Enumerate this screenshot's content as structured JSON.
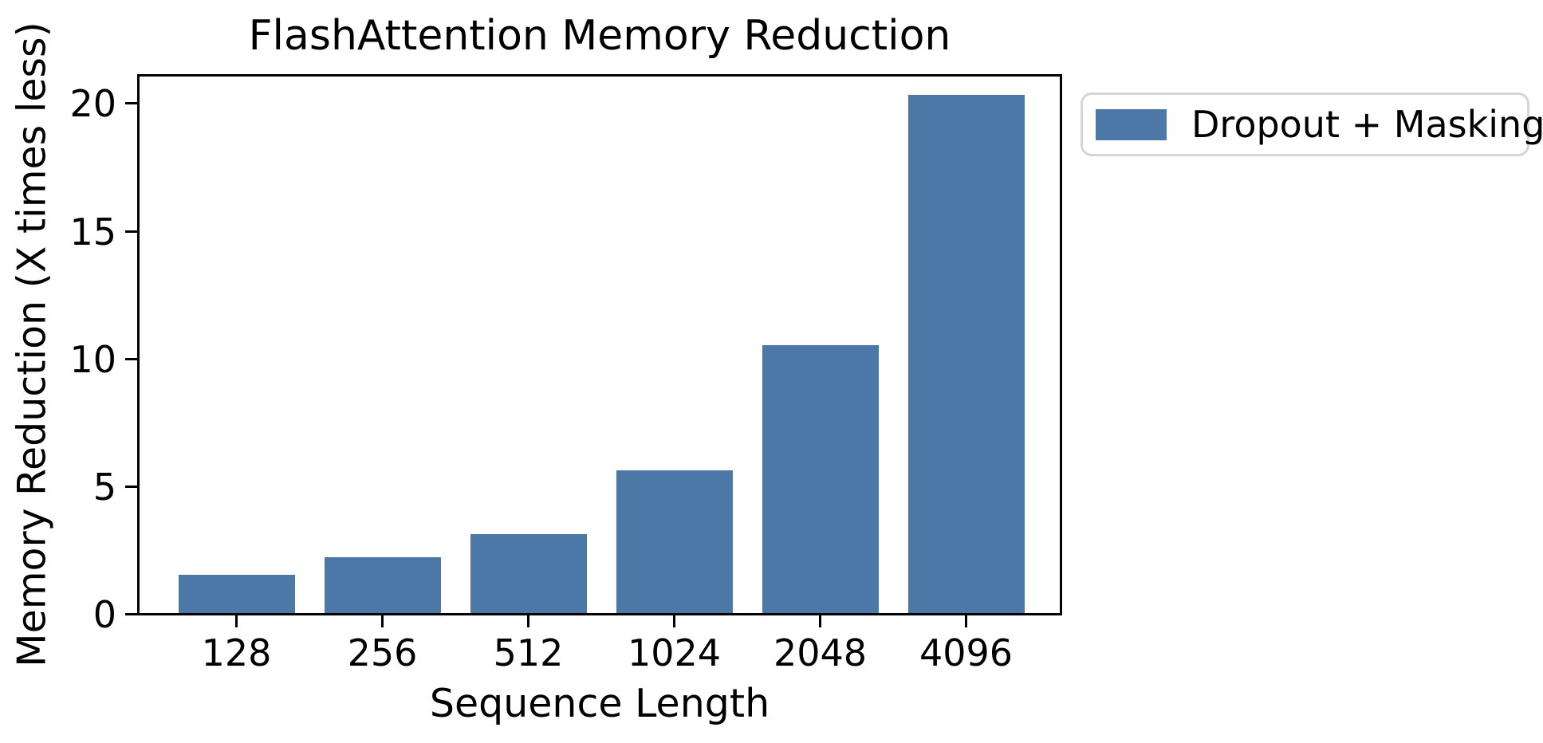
{
  "chart_data": {
    "type": "bar",
    "title": "FlashAttention Memory Reduction",
    "xlabel": "Sequence Length",
    "ylabel": "Memory Reduction (X times less)",
    "categories": [
      "128",
      "256",
      "512",
      "1024",
      "2048",
      "4096"
    ],
    "series": [
      {
        "name": "Dropout + Masking",
        "values": [
          1.5,
          2.2,
          3.1,
          5.6,
          10.5,
          20.3
        ]
      }
    ],
    "yticks": [
      0,
      5,
      10,
      15,
      20
    ],
    "ylim": [
      0,
      21.2
    ],
    "bar_color": "#4c78a8",
    "axis_color": "#000000",
    "text_color": "#000000",
    "grid": false,
    "legend": {
      "entries": [
        "Dropout + Masking"
      ],
      "position": "upper-right-outside",
      "border_color": "#d5d5d5",
      "background": "#ffffff"
    }
  }
}
